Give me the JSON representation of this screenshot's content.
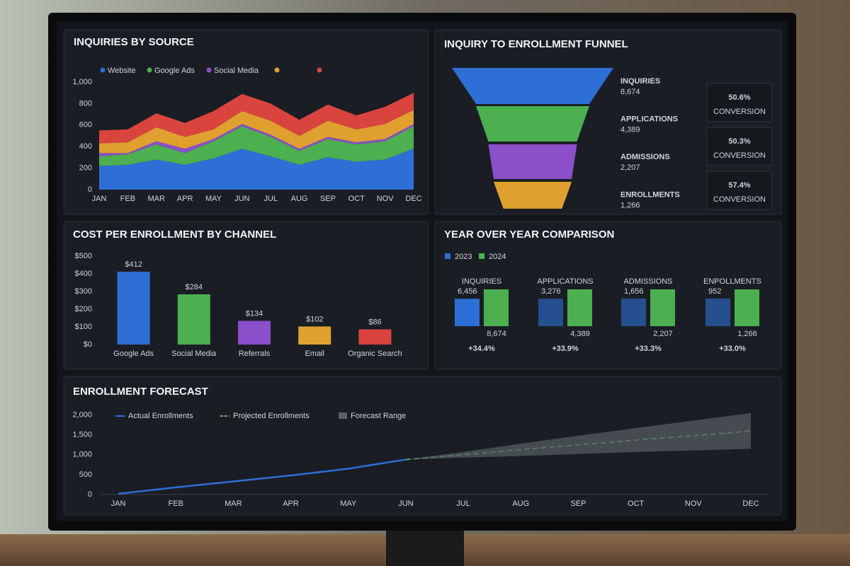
{
  "chart_data": [
    {
      "type": "area",
      "title": "INQUIRIES BY SOURCE",
      "categories": [
        "JAN",
        "FEB",
        "MAR",
        "APR",
        "MAY",
        "JUN",
        "JUL",
        "AUG",
        "SEP",
        "OCT",
        "NOV",
        "DEC"
      ],
      "series": [
        {
          "name": "Website",
          "color": "#2d6fd6",
          "values": [
            220,
            230,
            280,
            230,
            290,
            380,
            310,
            230,
            300,
            260,
            280,
            380
          ]
        },
        {
          "name": "Google Ads",
          "color": "#4caf50",
          "values": [
            90,
            100,
            140,
            110,
            160,
            210,
            180,
            130,
            170,
            160,
            170,
            210
          ]
        },
        {
          "name": "Social Media",
          "color": "#8a4fc9",
          "values": [
            30,
            10,
            30,
            40,
            20,
            20,
            20,
            20,
            20,
            20,
            20,
            20
          ]
        },
        {
          "color": "#e0a030",
          "values": [
            90,
            100,
            130,
            110,
            90,
            120,
            130,
            120,
            150,
            120,
            140,
            130
          ]
        },
        {
          "color": "#d9443f",
          "values": [
            120,
            120,
            130,
            130,
            170,
            160,
            160,
            150,
            150,
            130,
            160,
            160
          ]
        }
      ],
      "ylim": [
        0,
        1000
      ],
      "yticks": [
        0,
        200,
        400,
        600,
        800,
        {
          "value": 1000,
          "label": "1,000"
        }
      ]
    },
    {
      "type": "funnel",
      "title": "INQUIRY TO ENROLLMENT FUNNEL",
      "categories": [
        "INQUIRIES",
        "APPLICATIONS",
        "ADMISSIONS",
        "ENROLLMENTS"
      ],
      "values": [
        8674,
        4389,
        2207,
        1266
      ],
      "value_labels": [
        "8,674",
        "4,389",
        "2,207",
        "1,266"
      ],
      "colors": [
        "#2d6fd6",
        "#4caf50",
        "#8a4fc9",
        "#e0a030"
      ],
      "conversion": {
        "label": "CONVERSION",
        "values": [
          50.6,
          50.3,
          57.4
        ],
        "value_labels": [
          "50.6%",
          "50.3%",
          "57.4%"
        ],
        "colors": [
          "#3d86e8",
          "#e0a030",
          "#3d86e8"
        ]
      }
    },
    {
      "type": "bar",
      "title": "COST PER ENROLLMENT BY CHANNEL",
      "categories": [
        "Google Ads",
        "Social Media",
        "Referrals",
        "Email",
        "Organic Search"
      ],
      "values": [
        412,
        284,
        134,
        102,
        86
      ],
      "value_labels": [
        "$412",
        "$284",
        "$134",
        "$102",
        "$86"
      ],
      "colors": [
        "#2d6fd6",
        "#4caf50",
        "#8a4fc9",
        "#e0a030",
        "#d9443f"
      ],
      "ylim": [
        0,
        500
      ],
      "yticks": [
        {
          "value": 0,
          "label": "$0"
        },
        {
          "value": 100,
          "label": "$100"
        },
        {
          "value": 200,
          "label": "$200"
        },
        {
          "value": 300,
          "label": "$300"
        },
        {
          "value": 400,
          "label": "$400"
        },
        {
          "value": 500,
          "label": "$500"
        }
      ]
    },
    {
      "type": "grouped-bar",
      "title": "YEAR OVER YEAR COMPARISON",
      "categories": [
        "INQUIRIES",
        "APPLICATIONS",
        "ADMISSIONS",
        "ENPOLLMENTS"
      ],
      "series": [
        {
          "name": "2023",
          "color": "#2d6fd6",
          "values": [
            6456,
            3276,
            1656,
            952
          ],
          "value_labels": [
            "6,456",
            "3,276",
            "1,656",
            "952"
          ]
        },
        {
          "name": "2024",
          "color": "#4caf50",
          "values": [
            8674,
            4389,
            2207,
            1266
          ],
          "value_labels": [
            "8,674",
            "4,389",
            "2,207",
            "1,266"
          ]
        }
      ],
      "change": {
        "color": "#5cc062",
        "values": [
          34.4,
          33.9,
          33.3,
          33.0
        ],
        "value_labels": [
          "+34.4%",
          "+33.9%",
          "+33.3%",
          "+33.0%"
        ]
      }
    },
    {
      "type": "line",
      "title": "ENROLLMENT FORECAST",
      "categories": [
        "JAN",
        "FEB",
        "MAR",
        "APR",
        "MAY",
        "JUN",
        "JUL",
        "AUG",
        "SEP",
        "OCT",
        "NOV",
        "DEC"
      ],
      "series": [
        {
          "name": "Actual Enrollments",
          "color": "#2d6fd6",
          "values": [
            20,
            180,
            330,
            480,
            650,
            880,
            null,
            null,
            null,
            null,
            null,
            null
          ]
        },
        {
          "name": "Projected Enrollments",
          "color": "#5cc062",
          "dashed": true,
          "values": [
            null,
            null,
            null,
            null,
            null,
            880,
            1000,
            1130,
            1250,
            1370,
            1480,
            1600
          ]
        },
        {
          "name": "Forecast Range",
          "color": "#5a5e66",
          "lower": [
            null,
            null,
            null,
            null,
            null,
            880,
            930,
            970,
            1020,
            1070,
            1110,
            1150
          ],
          "upper": [
            null,
            null,
            null,
            null,
            null,
            880,
            1070,
            1280,
            1480,
            1670,
            1860,
            2050
          ]
        }
      ],
      "ylim": [
        0,
        2100
      ],
      "yticks": [
        0,
        500,
        {
          "value": 1000,
          "label": "1,000"
        },
        {
          "value": 1500,
          "label": "1,500"
        },
        {
          "value": 2000,
          "label": "2,000"
        }
      ]
    }
  ]
}
